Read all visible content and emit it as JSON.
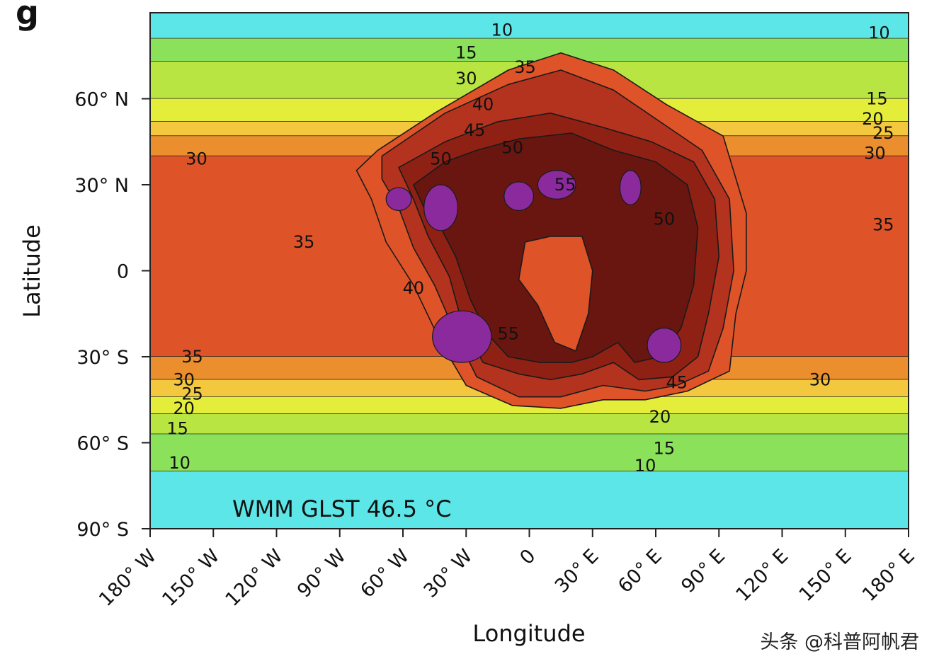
{
  "panel_label": "g",
  "watermark": "头条 @科普阿帆君",
  "colors": {
    "t5": "#5de6e8",
    "t10": "#8be25a",
    "t15": "#b8e542",
    "t20": "#e4ee3a",
    "t25": "#f3c73e",
    "t30": "#ea8e2e",
    "t35": "#de5428",
    "t45": "#b3331f",
    "t50": "#8e2114",
    "t55": "#6a1610",
    "t60": "#8b2a9c"
  },
  "chart_data": {
    "type": "heatmap",
    "title": "",
    "annotation": "WMM GLST 46.5 °C",
    "xlabel": "Longitude",
    "ylabel": "Latitude",
    "xlim": [
      -180,
      180
    ],
    "ylim": [
      -90,
      90
    ],
    "x_ticks": [
      {
        "value": -180,
        "label": "180° W"
      },
      {
        "value": -150,
        "label": "150° W"
      },
      {
        "value": -120,
        "label": "120° W"
      },
      {
        "value": -90,
        "label": "90° W"
      },
      {
        "value": -60,
        "label": "60° W"
      },
      {
        "value": -30,
        "label": "30° W"
      },
      {
        "value": 0,
        "label": "0"
      },
      {
        "value": 30,
        "label": "30° E"
      },
      {
        "value": 60,
        "label": "60° E"
      },
      {
        "value": 90,
        "label": "90° E"
      },
      {
        "value": 120,
        "label": "120° E"
      },
      {
        "value": 150,
        "label": "150° E"
      },
      {
        "value": 180,
        "label": "180° E"
      }
    ],
    "y_ticks": [
      {
        "value": 60,
        "label": "60° N"
      },
      {
        "value": 30,
        "label": "30° N"
      },
      {
        "value": 0,
        "label": "0"
      },
      {
        "value": -30,
        "label": "30° S"
      },
      {
        "value": -60,
        "label": "60° S"
      },
      {
        "value": -90,
        "label": "90° S"
      }
    ],
    "bands": [
      {
        "level": "t5",
        "lat_n": 90,
        "lat_s": 81
      },
      {
        "level": "t10",
        "lat_n": 81,
        "lat_s": 73
      },
      {
        "level": "t15",
        "lat_n": 73,
        "lat_s": 60
      },
      {
        "level": "t20",
        "lat_n": 60,
        "lat_s": 52
      },
      {
        "level": "t25",
        "lat_n": 52,
        "lat_s": 47
      },
      {
        "level": "t30",
        "lat_n": 47,
        "lat_s": 40
      },
      {
        "level": "t35",
        "lat_n": 40,
        "lat_s": -30
      },
      {
        "level": "t30",
        "lat_n": -30,
        "lat_s": -38
      },
      {
        "level": "t25",
        "lat_n": -38,
        "lat_s": -44
      },
      {
        "level": "t20",
        "lat_n": -44,
        "lat_s": -50
      },
      {
        "level": "t15",
        "lat_n": -50,
        "lat_s": -57
      },
      {
        "level": "t10",
        "lat_n": -57,
        "lat_s": -70
      },
      {
        "level": "t5",
        "lat_n": -70,
        "lat_s": -90
      }
    ],
    "continent_layers": [
      {
        "level": "t35",
        "pts": [
          [
            -72,
            42
          ],
          [
            -45,
            55
          ],
          [
            -10,
            70
          ],
          [
            15,
            76
          ],
          [
            40,
            70
          ],
          [
            65,
            58
          ],
          [
            92,
            47
          ],
          [
            103,
            20
          ],
          [
            103,
            0
          ],
          [
            98,
            -15
          ],
          [
            95,
            -35
          ],
          [
            75,
            -42
          ],
          [
            55,
            -45
          ],
          [
            35,
            -45
          ],
          [
            15,
            -48
          ],
          [
            -8,
            -47
          ],
          [
            -30,
            -40
          ],
          [
            -42,
            -25
          ],
          [
            -55,
            -5
          ],
          [
            -68,
            10
          ],
          [
            -75,
            25
          ],
          [
            -82,
            35
          ]
        ]
      },
      {
        "level": "t45",
        "pts": [
          [
            -70,
            40
          ],
          [
            -40,
            55
          ],
          [
            -10,
            65
          ],
          [
            15,
            70
          ],
          [
            40,
            63
          ],
          [
            62,
            52
          ],
          [
            82,
            42
          ],
          [
            95,
            25
          ],
          [
            97,
            0
          ],
          [
            92,
            -20
          ],
          [
            85,
            -35
          ],
          [
            70,
            -40
          ],
          [
            55,
            -42
          ],
          [
            35,
            -40
          ],
          [
            15,
            -44
          ],
          [
            -5,
            -44
          ],
          [
            -25,
            -37
          ],
          [
            -35,
            -22
          ],
          [
            -45,
            -5
          ],
          [
            -55,
            8
          ],
          [
            -62,
            22
          ],
          [
            -70,
            32
          ]
        ]
      },
      {
        "level": "t50",
        "pts": [
          [
            -62,
            36
          ],
          [
            -40,
            45
          ],
          [
            -15,
            52
          ],
          [
            10,
            55
          ],
          [
            35,
            50
          ],
          [
            58,
            45
          ],
          [
            78,
            38
          ],
          [
            88,
            25
          ],
          [
            90,
            5
          ],
          [
            85,
            -15
          ],
          [
            80,
            -30
          ],
          [
            68,
            -37
          ],
          [
            52,
            -38
          ],
          [
            40,
            -32
          ],
          [
            25,
            -36
          ],
          [
            10,
            -38
          ],
          [
            -5,
            -36
          ],
          [
            -22,
            -32
          ],
          [
            -32,
            -18
          ],
          [
            -38,
            -2
          ],
          [
            -48,
            12
          ],
          [
            -55,
            25
          ]
        ]
      },
      {
        "level": "t55",
        "pts": [
          [
            -55,
            30
          ],
          [
            -40,
            38
          ],
          [
            -25,
            42
          ],
          [
            -5,
            46
          ],
          [
            20,
            48
          ],
          [
            40,
            42
          ],
          [
            60,
            38
          ],
          [
            75,
            30
          ],
          [
            80,
            15
          ],
          [
            78,
            -5
          ],
          [
            72,
            -20
          ],
          [
            62,
            -30
          ],
          [
            50,
            -32
          ],
          [
            42,
            -25
          ],
          [
            30,
            -30
          ],
          [
            20,
            -32
          ],
          [
            5,
            -32
          ],
          [
            -10,
            -30
          ],
          [
            -20,
            -22
          ],
          [
            -28,
            -10
          ],
          [
            -35,
            5
          ],
          [
            -42,
            15
          ],
          [
            -50,
            22
          ]
        ]
      },
      {
        "level": "t35",
        "pts": [
          [
            -2,
            10
          ],
          [
            10,
            12
          ],
          [
            25,
            12
          ],
          [
            30,
            0
          ],
          [
            28,
            -15
          ],
          [
            22,
            -28
          ],
          [
            12,
            -25
          ],
          [
            4,
            -12
          ],
          [
            -5,
            -3
          ]
        ]
      }
    ],
    "hot_spots": [
      {
        "level": "t60",
        "cx": -62,
        "cy": 25,
        "rx": 6,
        "ry": 4
      },
      {
        "level": "t60",
        "cx": -42,
        "cy": 22,
        "rx": 8,
        "ry": 8
      },
      {
        "level": "t60",
        "cx": -5,
        "cy": 26,
        "rx": 7,
        "ry": 5
      },
      {
        "level": "t60",
        "cx": 13,
        "cy": 30,
        "rx": 9,
        "ry": 5
      },
      {
        "level": "t60",
        "cx": 48,
        "cy": 29,
        "rx": 5,
        "ry": 6
      },
      {
        "level": "t60",
        "cx": -32,
        "cy": -23,
        "rx": 14,
        "ry": 9
      },
      {
        "level": "t60",
        "cx": 64,
        "cy": -26,
        "rx": 8,
        "ry": 6
      }
    ],
    "contour_labels": [
      {
        "text": "10",
        "lon": -166,
        "lat": -67
      },
      {
        "text": "15",
        "lon": -167,
        "lat": -55
      },
      {
        "text": "20",
        "lon": -164,
        "lat": -48
      },
      {
        "text": "25",
        "lon": -160,
        "lat": -43
      },
      {
        "text": "30",
        "lon": -164,
        "lat": -38
      },
      {
        "text": "35",
        "lon": -160,
        "lat": -30
      },
      {
        "text": "30",
        "lon": -158,
        "lat": 39
      },
      {
        "text": "35",
        "lon": -107,
        "lat": 10
      },
      {
        "text": "10",
        "lon": -13,
        "lat": 84
      },
      {
        "text": "15",
        "lon": -30,
        "lat": 76
      },
      {
        "text": "30",
        "lon": -30,
        "lat": 67
      },
      {
        "text": "35",
        "lon": -2,
        "lat": 71
      },
      {
        "text": "40",
        "lon": -22,
        "lat": 58
      },
      {
        "text": "45",
        "lon": -26,
        "lat": 49
      },
      {
        "text": "50",
        "lon": -42,
        "lat": 39
      },
      {
        "text": "50",
        "lon": -8,
        "lat": 43
      },
      {
        "text": "55",
        "lon": 17,
        "lat": 30
      },
      {
        "text": "50",
        "lon": 64,
        "lat": 18
      },
      {
        "text": "40",
        "lon": -55,
        "lat": -6
      },
      {
        "text": "55",
        "lon": -10,
        "lat": -22
      },
      {
        "text": "45",
        "lon": 70,
        "lat": -39
      },
      {
        "text": "20",
        "lon": 62,
        "lat": -51
      },
      {
        "text": "15",
        "lon": 64,
        "lat": -62
      },
      {
        "text": "10",
        "lon": 55,
        "lat": -68
      },
      {
        "text": "10",
        "lon": 166,
        "lat": 83
      },
      {
        "text": "15",
        "lon": 165,
        "lat": 60
      },
      {
        "text": "20",
        "lon": 163,
        "lat": 53
      },
      {
        "text": "25",
        "lon": 168,
        "lat": 48
      },
      {
        "text": "30",
        "lon": 164,
        "lat": 41
      },
      {
        "text": "35",
        "lon": 168,
        "lat": 16
      },
      {
        "text": "30",
        "lon": 138,
        "lat": -38
      }
    ]
  }
}
